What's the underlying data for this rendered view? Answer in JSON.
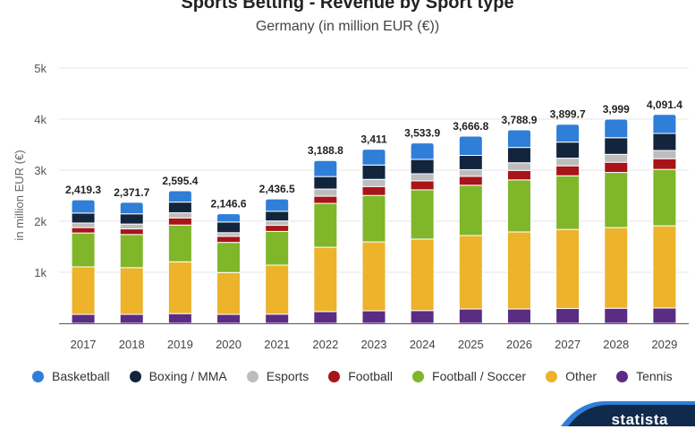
{
  "header": {
    "title": "Sports Betting - Revenue by Sport type",
    "subtitle": "Germany (in million EUR (€))"
  },
  "brand": {
    "label": "statista",
    "icon": "statista-arrow-icon"
  },
  "chart_data": {
    "type": "bar",
    "stacked": true,
    "title": "Sports Betting - Revenue by Sport type",
    "subtitle": "Germany (in million EUR (€))",
    "xlabel": "",
    "ylabel": "in million EUR (€)",
    "ylim": [
      0,
      5000
    ],
    "yticks": [
      1000,
      2000,
      3000,
      4000,
      5000
    ],
    "ytick_labels": [
      "1k",
      "2k",
      "3k",
      "4k",
      "5k"
    ],
    "grid": true,
    "legend_position": "bottom",
    "categories": [
      "2017",
      "2018",
      "2019",
      "2020",
      "2021",
      "2022",
      "2023",
      "2024",
      "2025",
      "2026",
      "2027",
      "2028",
      "2029"
    ],
    "totals": [
      2419.3,
      2371.7,
      2595.4,
      2146.6,
      2436.5,
      3188.8,
      3411,
      3533.9,
      3666.8,
      3788.9,
      3899.7,
      3999,
      4091.4
    ],
    "total_labels": [
      "2,419.3",
      "2,371.7",
      "2,595.4",
      "2,146.6",
      "2,436.5",
      "3,188.8",
      "3,411",
      "3,533.9",
      "3,666.8",
      "3,788.9",
      "3,899.7",
      "3,999",
      "4,091.4"
    ],
    "series": [
      {
        "name": "Tennis",
        "color": "#5b2c83",
        "values": [
          175,
          175,
          190,
          175,
          180,
          230,
          245,
          250,
          280,
          280,
          290,
          295,
          300
        ]
      },
      {
        "name": "Other",
        "color": "#ecb32b",
        "values": [
          930,
          915,
          1015,
          820,
          960,
          1260,
          1350,
          1400,
          1440,
          1510,
          1550,
          1580,
          1610
        ]
      },
      {
        "name": "Football / Soccer",
        "color": "#80b62a",
        "values": [
          665,
          650,
          720,
          590,
          660,
          860,
          910,
          965,
          985,
          1020,
          1050,
          1080,
          1105
        ]
      },
      {
        "name": "Football",
        "color": "#a7141a",
        "values": [
          105,
          110,
          140,
          120,
          120,
          140,
          175,
          175,
          175,
          185,
          195,
          200,
          210
        ]
      },
      {
        "name": "Esports",
        "color": "#bdbdbd",
        "values": [
          90,
          95,
          100,
          70,
          85,
          140,
          140,
          140,
          130,
          150,
          150,
          155,
          160
        ]
      },
      {
        "name": "Boxing / MMA",
        "color": "#13253c",
        "values": [
          195,
          200,
          210,
          210,
          190,
          245,
          280,
          280,
          280,
          300,
          315,
          325,
          335
        ]
      },
      {
        "name": "Basketball",
        "color": "#2f7ed8",
        "values": [
          259.3,
          226.7,
          220.4,
          161.6,
          241.5,
          313.8,
          311,
          323.9,
          376.8,
          343.9,
          349.7,
          364,
          371.4
        ]
      }
    ],
    "legend_order": [
      "Basketball",
      "Boxing / MMA",
      "Esports",
      "Football",
      "Football / Soccer",
      "Other",
      "Tennis"
    ]
  },
  "legend": [
    {
      "label": "Basketball",
      "color": "#2f7ed8"
    },
    {
      "label": "Boxing / MMA",
      "color": "#13253c"
    },
    {
      "label": "Esports",
      "color": "#bdbdbd"
    },
    {
      "label": "Football",
      "color": "#a7141a"
    },
    {
      "label": "Football / Soccer",
      "color": "#80b62a"
    },
    {
      "label": "Other",
      "color": "#ecb32b"
    },
    {
      "label": "Tennis",
      "color": "#5b2c83"
    }
  ]
}
